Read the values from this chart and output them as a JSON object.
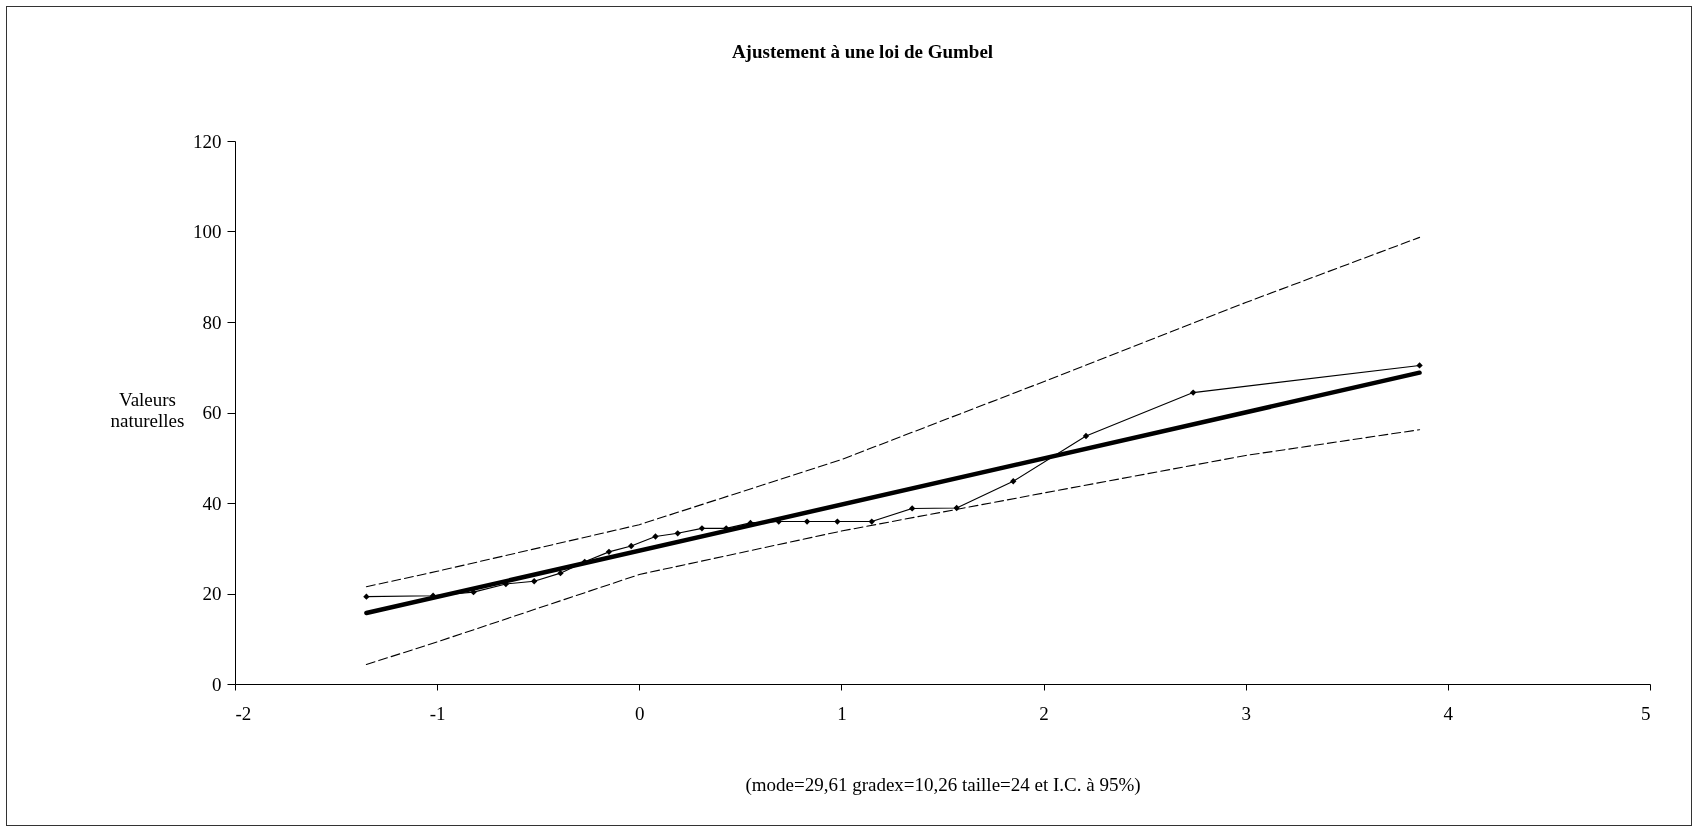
{
  "chart_data": {
    "type": "line",
    "title": "Ajustement à une loi de Gumbel",
    "xlabel": "(mode=29,61 gradex=10,26 taille=24 et I.C. à 95%)",
    "ylabel": "Valeurs naturelles",
    "xlim": [
      -2,
      5
    ],
    "xticks": [
      -2,
      -1,
      0,
      1,
      2,
      3,
      4,
      5
    ],
    "ylim": [
      0,
      120
    ],
    "yticks": [
      0,
      20,
      40,
      60,
      80,
      100,
      120
    ],
    "grid": false,
    "series": [
      {
        "color": "#000000",
        "marker": "diamond",
        "line_style": "solid",
        "x": [
          -1.35,
          -1.02,
          -0.82,
          -0.66,
          -0.52,
          -0.39,
          -0.27,
          -0.15,
          -0.04,
          0.08,
          0.19,
          0.31,
          0.43,
          0.55,
          0.69,
          0.83,
          0.98,
          1.15,
          1.35,
          1.57,
          1.85,
          2.21,
          2.74,
          3.86
        ],
        "values": [
          19.3,
          19.5,
          20.3,
          22.1,
          22.7,
          24.5,
          27.0,
          29.2,
          30.5,
          32.6,
          33.3,
          34.4,
          34.4,
          35.6,
          35.9,
          35.9,
          35.9,
          35.9,
          38.8,
          38.9,
          44.8,
          54.8,
          64.4,
          70.4
        ]
      },
      {
        "color": "#000000",
        "marker": "none",
        "line_style": "solid",
        "x": [
          -1.35,
          3.86
        ],
        "values": [
          15.7,
          68.8
        ]
      },
      {
        "color": "#000000",
        "marker": "none",
        "line_style": "dashed",
        "x": [
          -1.35,
          -1,
          0,
          1,
          2,
          3,
          3.86
        ],
        "values": [
          21.5,
          24.9,
          35.2,
          49.6,
          66.8,
          84.3,
          98.7
        ]
      },
      {
        "color": "#000000",
        "marker": "none",
        "line_style": "dashed",
        "x": [
          -1.35,
          -1,
          0,
          1,
          2,
          3,
          3.86
        ],
        "values": [
          4.3,
          9.3,
          24.2,
          33.8,
          42.2,
          50.5,
          56.2
        ]
      }
    ]
  }
}
